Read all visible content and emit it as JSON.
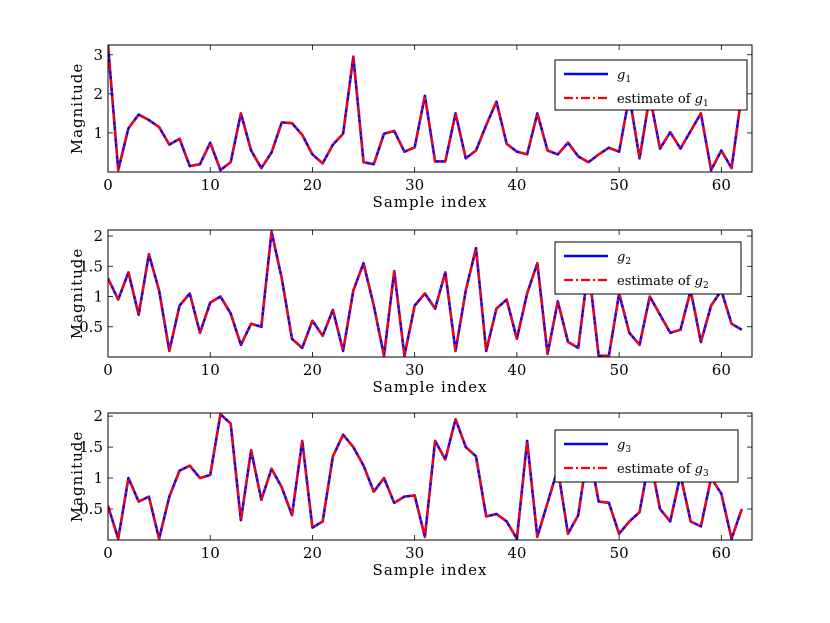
{
  "chart_data": [
    {
      "type": "line",
      "xlabel": "Sample index",
      "ylabel": "Magnitude",
      "xlim": [
        0,
        63
      ],
      "ylim": [
        0,
        3.25
      ],
      "xticks": [
        "0",
        "10",
        "20",
        "30",
        "40",
        "50",
        "60"
      ],
      "yticks": [
        "1",
        "2",
        "3"
      ],
      "legend_placement": "top-right",
      "grid": false,
      "series": [
        {
          "name": "g",
          "subscript": "1",
          "color": "#0000ff",
          "style": "solid",
          "values": [
            3.25,
            0.05,
            1.12,
            1.47,
            1.33,
            1.15,
            0.7,
            0.85,
            0.15,
            0.2,
            0.75,
            0.05,
            0.25,
            1.5,
            0.55,
            0.1,
            0.5,
            1.27,
            1.25,
            0.95,
            0.45,
            0.22,
            0.7,
            0.98,
            2.95,
            0.25,
            0.2,
            0.98,
            1.05,
            0.52,
            0.63,
            1.95,
            0.27,
            0.27,
            1.5,
            0.35,
            0.55,
            1.2,
            1.8,
            0.72,
            0.52,
            0.45,
            1.5,
            0.55,
            0.45,
            0.75,
            0.4,
            0.25,
            0.45,
            0.62,
            0.52,
            1.95,
            0.35,
            1.95,
            0.6,
            1.02,
            0.6,
            1.05,
            1.5,
            0.05,
            0.55,
            0.1,
            2.0
          ]
        },
        {
          "name": "estimate of g",
          "subscript": "1",
          "color": "#ff0000",
          "style": "dash-dot",
          "values": [
            3.25,
            0.05,
            1.12,
            1.47,
            1.33,
            1.15,
            0.7,
            0.85,
            0.15,
            0.2,
            0.75,
            0.05,
            0.25,
            1.5,
            0.55,
            0.1,
            0.5,
            1.27,
            1.25,
            0.95,
            0.45,
            0.22,
            0.7,
            0.98,
            2.95,
            0.25,
            0.2,
            0.98,
            1.05,
            0.52,
            0.63,
            1.95,
            0.27,
            0.27,
            1.5,
            0.35,
            0.55,
            1.2,
            1.8,
            0.72,
            0.52,
            0.45,
            1.5,
            0.55,
            0.45,
            0.75,
            0.4,
            0.25,
            0.45,
            0.62,
            0.52,
            1.95,
            0.35,
            1.95,
            0.6,
            1.02,
            0.6,
            1.05,
            1.5,
            0.05,
            0.55,
            0.1,
            2.0
          ]
        }
      ]
    },
    {
      "type": "line",
      "xlabel": "Sample index",
      "ylabel": "Magnitude",
      "xlim": [
        0,
        63
      ],
      "ylim": [
        0,
        2.1
      ],
      "xticks": [
        "0",
        "10",
        "20",
        "30",
        "40",
        "50",
        "60"
      ],
      "yticks": [
        "0.5",
        "1",
        "1.5",
        "2"
      ],
      "legend_placement": "top-right",
      "grid": false,
      "series": [
        {
          "name": "g",
          "subscript": "2",
          "color": "#0000ff",
          "style": "solid",
          "values": [
            1.3,
            0.95,
            1.4,
            0.7,
            1.7,
            1.1,
            0.1,
            0.85,
            1.05,
            0.4,
            0.9,
            1.0,
            0.72,
            0.2,
            0.55,
            0.5,
            2.07,
            1.3,
            0.3,
            0.15,
            0.6,
            0.35,
            0.78,
            0.1,
            1.1,
            1.55,
            0.85,
            0.02,
            1.42,
            0.02,
            0.85,
            1.05,
            0.8,
            1.4,
            0.1,
            1.1,
            1.8,
            0.1,
            0.8,
            0.95,
            0.3,
            1.05,
            1.55,
            0.05,
            0.92,
            0.25,
            0.15,
            1.5,
            0.02,
            0.02,
            1.05,
            0.4,
            0.2,
            1.0,
            0.7,
            0.4,
            0.45,
            1.1,
            0.25,
            0.85,
            1.1,
            0.55,
            0.45
          ]
        },
        {
          "name": "estimate of g",
          "subscript": "2",
          "color": "#ff0000",
          "style": "dash-dot",
          "values": [
            1.3,
            0.95,
            1.4,
            0.7,
            1.7,
            1.1,
            0.1,
            0.85,
            1.05,
            0.4,
            0.9,
            1.0,
            0.72,
            0.2,
            0.55,
            0.5,
            2.07,
            1.3,
            0.3,
            0.15,
            0.6,
            0.35,
            0.78,
            0.1,
            1.1,
            1.55,
            0.85,
            0.02,
            1.42,
            0.02,
            0.85,
            1.05,
            0.8,
            1.4,
            0.1,
            1.1,
            1.8,
            0.1,
            0.8,
            0.95,
            0.3,
            1.05,
            1.55,
            0.05,
            0.92,
            0.25,
            0.15,
            1.5,
            0.02,
            0.02,
            1.05,
            0.4,
            0.2,
            1.0,
            0.7,
            0.4,
            0.45,
            1.1,
            0.25,
            0.85,
            1.1,
            0.55,
            0.45
          ]
        }
      ]
    },
    {
      "type": "line",
      "xlabel": "Sample index",
      "ylabel": "Magnitude",
      "xlim": [
        0,
        63
      ],
      "ylim": [
        0,
        2.05
      ],
      "xticks": [
        "0",
        "10",
        "20",
        "30",
        "40",
        "50",
        "60"
      ],
      "yticks": [
        "0.5",
        "1",
        "1.5",
        "2"
      ],
      "legend_placement": "top-right",
      "grid": false,
      "series": [
        {
          "name": "g",
          "subscript": "3",
          "color": "#0000ff",
          "style": "solid",
          "values": [
            0.55,
            0.02,
            1.0,
            0.62,
            0.7,
            0.02,
            0.7,
            1.12,
            1.2,
            1.0,
            1.05,
            2.03,
            1.88,
            0.32,
            1.45,
            0.65,
            1.15,
            0.85,
            0.4,
            1.6,
            0.2,
            0.3,
            1.35,
            1.7,
            1.5,
            1.2,
            0.78,
            1.0,
            0.6,
            0.7,
            0.72,
            0.05,
            1.6,
            1.3,
            1.95,
            1.5,
            1.35,
            0.38,
            0.42,
            0.3,
            0.02,
            1.6,
            0.05,
            0.6,
            1.15,
            0.1,
            0.4,
            1.5,
            0.62,
            0.6,
            0.1,
            0.3,
            0.45,
            1.35,
            0.5,
            0.3,
            1.05,
            0.3,
            0.22,
            1.0,
            0.75,
            0.02,
            0.5
          ]
        },
        {
          "name": "estimate of g",
          "subscript": "3",
          "color": "#ff0000",
          "style": "dash-dot",
          "values": [
            0.55,
            0.02,
            1.0,
            0.62,
            0.7,
            0.02,
            0.7,
            1.12,
            1.2,
            1.0,
            1.05,
            2.03,
            1.88,
            0.32,
            1.45,
            0.65,
            1.15,
            0.85,
            0.4,
            1.6,
            0.2,
            0.3,
            1.35,
            1.7,
            1.5,
            1.2,
            0.78,
            1.0,
            0.6,
            0.7,
            0.72,
            0.05,
            1.6,
            1.3,
            1.95,
            1.5,
            1.35,
            0.38,
            0.42,
            0.3,
            0.02,
            1.6,
            0.05,
            0.6,
            1.15,
            0.1,
            0.4,
            1.5,
            0.62,
            0.6,
            0.1,
            0.3,
            0.45,
            1.35,
            0.5,
            0.3,
            1.05,
            0.3,
            0.22,
            1.0,
            0.75,
            0.02,
            0.5
          ]
        }
      ]
    }
  ]
}
